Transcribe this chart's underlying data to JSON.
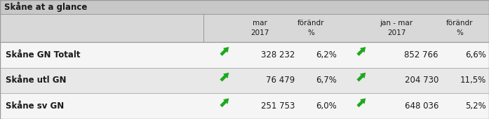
{
  "title": "Skåne at a glance",
  "title_bg": "#c8c8c8",
  "header_bg": "#d8d8d8",
  "row_bgs": [
    "#f5f5f5",
    "#e8e8e8",
    "#f5f5f5"
  ],
  "rows": [
    {
      "label": "Skåne GN Totalt",
      "val1": "328 232",
      "chg1": "6,2%",
      "val2": "852 766",
      "chg2": "6,6%"
    },
    {
      "label": "Skåne utl GN",
      "val1": "76 479",
      "chg1": "6,7%",
      "val2": "204 730",
      "chg2": "11,5%"
    },
    {
      "label": "Skåne sv GN",
      "val1": "251 753",
      "chg1": "6,0%",
      "val2": "648 036",
      "chg2": "5,2%"
    }
  ],
  "arrow_color": "#1da81d",
  "text_color": "#1a1a1a",
  "border_color": "#999999",
  "title_fontsize": 8.5,
  "header_fontsize": 7.5,
  "data_fontsize": 8.5,
  "label_fontsize": 8.5,
  "figsize": [
    6.97,
    1.7
  ],
  "dpi": 100
}
